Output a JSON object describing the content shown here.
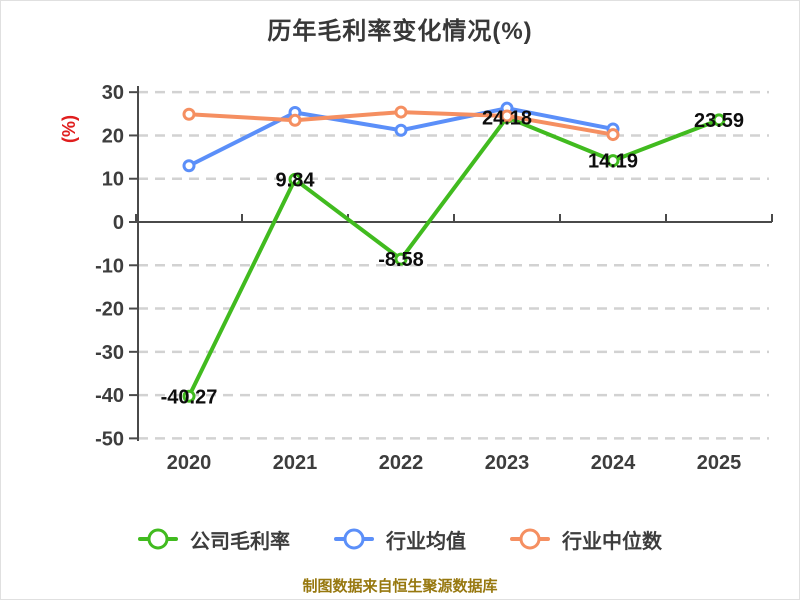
{
  "title": "历年毛利率变化情况(%)",
  "footer": {
    "text": "制图数据来自恒生聚源数据库",
    "color": "#97780f"
  },
  "axis_style": {
    "ylabel_color": "#e01e1e",
    "tick_color": "#3d3d3d"
  },
  "chart_data": {
    "type": "line",
    "title": "历年毛利率变化情况(%)",
    "categories": [
      "2020",
      "2021",
      "2022",
      "2023",
      "2024",
      "2025"
    ],
    "xlabel": "",
    "ylabel": "(%)",
    "ylim": [
      -50,
      30
    ],
    "ytick_step": 10,
    "yticks": [
      30,
      20,
      10,
      0,
      -10,
      -20,
      -30,
      -40,
      -50
    ],
    "grid": "horizontal-dashed",
    "legend_position": "bottom",
    "series": [
      {
        "name": "公司毛利率",
        "color": "#41bb1f",
        "values": [
          -40.27,
          9.84,
          -8.58,
          24.18,
          14.19,
          23.59
        ],
        "show_point_labels": true,
        "point_labels": [
          "-40.27",
          "9.84",
          "-8.58",
          "24.18",
          "14.19",
          "23.59"
        ]
      },
      {
        "name": "行业均值",
        "color": "#5b8ff9",
        "values": [
          13.0,
          25.3,
          21.2,
          26.3,
          21.5,
          null
        ],
        "show_point_labels": false
      },
      {
        "name": "行业中位数",
        "color": "#f58f61",
        "values": [
          24.9,
          23.5,
          25.4,
          24.5,
          20.2,
          null
        ],
        "show_point_labels": false
      }
    ]
  }
}
